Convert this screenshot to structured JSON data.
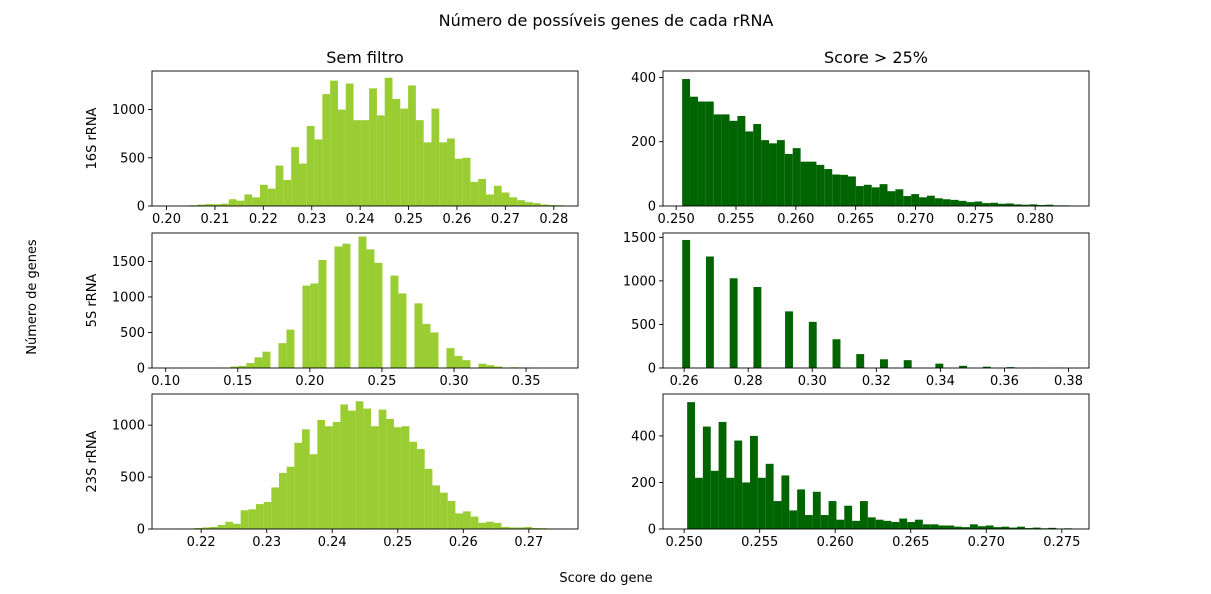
{
  "figure": {
    "title": "Número de possíveis genes de cada rRNA",
    "xlabel": "Score do gene",
    "ylabel": "Número de genes",
    "column_titles": [
      "Sem filtro",
      "Score > 25%"
    ],
    "row_labels": [
      "16S rRNA",
      "5S rRNA",
      "23S rRNA"
    ],
    "colors": {
      "unfiltered": "#9acd32",
      "filtered": "#006400"
    }
  },
  "chart_data": [
    {
      "type": "bar",
      "row": 0,
      "col": 0,
      "title": "Sem filtro",
      "ylabel": "16S rRNA",
      "color": "#9acd32",
      "xlim": [
        0.197,
        0.285
      ],
      "ylim": [
        0,
        1400
      ],
      "xticks": [
        0.2,
        0.21,
        0.22,
        0.23,
        0.24,
        0.25,
        0.26,
        0.27,
        0.28
      ],
      "xtick_labels": [
        "0.20",
        "0.21",
        "0.22",
        "0.23",
        "0.24",
        "0.25",
        "0.26",
        "0.27",
        "0.28"
      ],
      "yticks": [
        0,
        500,
        1000
      ],
      "ytick_labels": [
        "0",
        "500",
        "1000"
      ],
      "bin_start": 0.2016,
      "bin_width": 0.00161,
      "values": [
        2,
        3,
        8,
        15,
        20,
        18,
        25,
        70,
        55,
        120,
        90,
        220,
        180,
        420,
        270,
        610,
        440,
        830,
        690,
        1160,
        1300,
        1000,
        1270,
        890,
        890,
        1220,
        940,
        1330,
        1110,
        1010,
        1250,
        890,
        660,
        1010,
        660,
        700,
        490,
        500,
        250,
        280,
        120,
        210,
        140,
        90,
        60,
        40,
        30,
        15,
        10,
        8,
        5,
        2
      ]
    },
    {
      "type": "bar",
      "row": 0,
      "col": 1,
      "title": "Score > 25%",
      "ylabel": "",
      "color": "#006400",
      "xlim": [
        0.2489,
        0.2845
      ],
      "ylim": [
        0,
        420
      ],
      "xticks": [
        0.25,
        0.255,
        0.26,
        0.265,
        0.27,
        0.275,
        0.28
      ],
      "xtick_labels": [
        "0.250",
        "0.255",
        "0.260",
        "0.265",
        "0.270",
        "0.275",
        "0.280"
      ],
      "yticks": [
        0,
        200,
        400
      ],
      "ytick_labels": [
        "0",
        "200",
        "400"
      ],
      "bin_start": 0.2505,
      "bin_width": 0.00066,
      "values": [
        395,
        340,
        325,
        325,
        285,
        285,
        265,
        280,
        232,
        255,
        205,
        195,
        205,
        162,
        180,
        138,
        138,
        128,
        115,
        98,
        97,
        92,
        62,
        66,
        58,
        68,
        46,
        52,
        31,
        37,
        27,
        32,
        24,
        21,
        19,
        16,
        12,
        14,
        9,
        10,
        7,
        8,
        5,
        4,
        5,
        3,
        4,
        2,
        2,
        1
      ]
    },
    {
      "type": "bar",
      "row": 1,
      "col": 0,
      "title": "",
      "ylabel": "5S rRNA",
      "color": "#9acd32",
      "xlim": [
        0.0905,
        0.386
      ],
      "ylim": [
        0,
        1900
      ],
      "xticks": [
        0.1,
        0.15,
        0.2,
        0.25,
        0.3,
        0.35
      ],
      "xtick_labels": [
        "0.10",
        "0.15",
        "0.20",
        "0.25",
        "0.30",
        "0.35"
      ],
      "yticks": [
        0,
        500,
        1000,
        1500
      ],
      "ytick_labels": [
        "0",
        "500",
        "1000",
        "1500"
      ],
      "bin_start": 0.1005,
      "bin_width": 0.00555,
      "values": [
        0,
        0,
        0,
        0,
        0,
        0,
        4,
        0,
        20,
        30,
        70,
        150,
        230,
        0,
        350,
        540,
        0,
        1160,
        1190,
        1520,
        0,
        1710,
        1750,
        0,
        1850,
        1670,
        1480,
        0,
        1300,
        1050,
        0,
        910,
        620,
        500,
        0,
        280,
        170,
        110,
        0,
        60,
        40,
        20,
        0,
        10,
        5,
        2,
        0,
        0,
        0,
        0,
        0,
        0
      ]
    },
    {
      "type": "bar",
      "row": 1,
      "col": 1,
      "title": "",
      "ylabel": "",
      "color": "#006400",
      "xlim": [
        0.2534,
        0.3864
      ],
      "ylim": [
        0,
        1550
      ],
      "xticks": [
        0.26,
        0.28,
        0.3,
        0.32,
        0.34,
        0.36,
        0.38
      ],
      "xtick_labels": [
        "0.26",
        "0.28",
        "0.30",
        "0.32",
        "0.34",
        "0.36",
        "0.38"
      ],
      "yticks": [
        0,
        500,
        1000,
        1500
      ],
      "ytick_labels": [
        "0",
        "500",
        "1000",
        "1500"
      ],
      "bin_start": 0.2594,
      "bin_width": 0.00247,
      "values": [
        1470,
        0,
        0,
        1280,
        0,
        0,
        1030,
        0,
        0,
        930,
        0,
        0,
        0,
        650,
        0,
        0,
        530,
        0,
        0,
        330,
        0,
        0,
        160,
        0,
        0,
        100,
        0,
        0,
        90,
        0,
        0,
        0,
        50,
        0,
        0,
        25,
        0,
        0,
        15,
        0,
        0,
        10,
        0,
        0,
        5,
        0,
        0,
        3,
        0,
        0
      ]
    },
    {
      "type": "bar",
      "row": 2,
      "col": 0,
      "title": "",
      "ylabel": "23S rRNA",
      "color": "#9acd32",
      "xlim": [
        0.2125,
        0.2775
      ],
      "ylim": [
        0,
        1300
      ],
      "xticks": [
        0.22,
        0.23,
        0.24,
        0.25,
        0.26,
        0.27
      ],
      "xtick_labels": [
        "0.22",
        "0.23",
        "0.24",
        "0.25",
        "0.26",
        "0.27"
      ],
      "yticks": [
        0,
        500,
        1000
      ],
      "ytick_labels": [
        "0",
        "500",
        "1000"
      ],
      "bin_start": 0.2155,
      "bin_width": 0.00117,
      "values": [
        2,
        3,
        5,
        10,
        15,
        20,
        40,
        70,
        50,
        180,
        190,
        240,
        260,
        400,
        540,
        600,
        830,
        960,
        720,
        1050,
        990,
        1030,
        1200,
        1140,
        1230,
        1160,
        990,
        1150,
        1060,
        980,
        990,
        840,
        770,
        580,
        420,
        350,
        270,
        150,
        170,
        120,
        60,
        70,
        60,
        20,
        15,
        15,
        20,
        10,
        8,
        5,
        2,
        1
      ]
    },
    {
      "type": "bar",
      "row": 2,
      "col": 1,
      "title": "",
      "ylabel": "",
      "color": "#006400",
      "xlim": [
        0.2486,
        0.2768
      ],
      "ylim": [
        0,
        580
      ],
      "xticks": [
        0.25,
        0.255,
        0.26,
        0.265,
        0.27,
        0.275
      ],
      "xtick_labels": [
        "0.250",
        "0.255",
        "0.260",
        "0.265",
        "0.270",
        "0.275"
      ],
      "yticks": [
        0,
        200,
        400
      ],
      "ytick_labels": [
        "0",
        "200",
        "400"
      ],
      "bin_start": 0.2502,
      "bin_width": 0.00052,
      "values": [
        545,
        220,
        440,
        250,
        460,
        220,
        380,
        200,
        400,
        220,
        280,
        120,
        230,
        80,
        170,
        60,
        160,
        60,
        120,
        40,
        100,
        35,
        120,
        50,
        40,
        35,
        30,
        45,
        30,
        40,
        20,
        20,
        15,
        15,
        10,
        8,
        20,
        12,
        15,
        8,
        10,
        6,
        10,
        4,
        6,
        3,
        5,
        2,
        3,
        1
      ]
    }
  ]
}
